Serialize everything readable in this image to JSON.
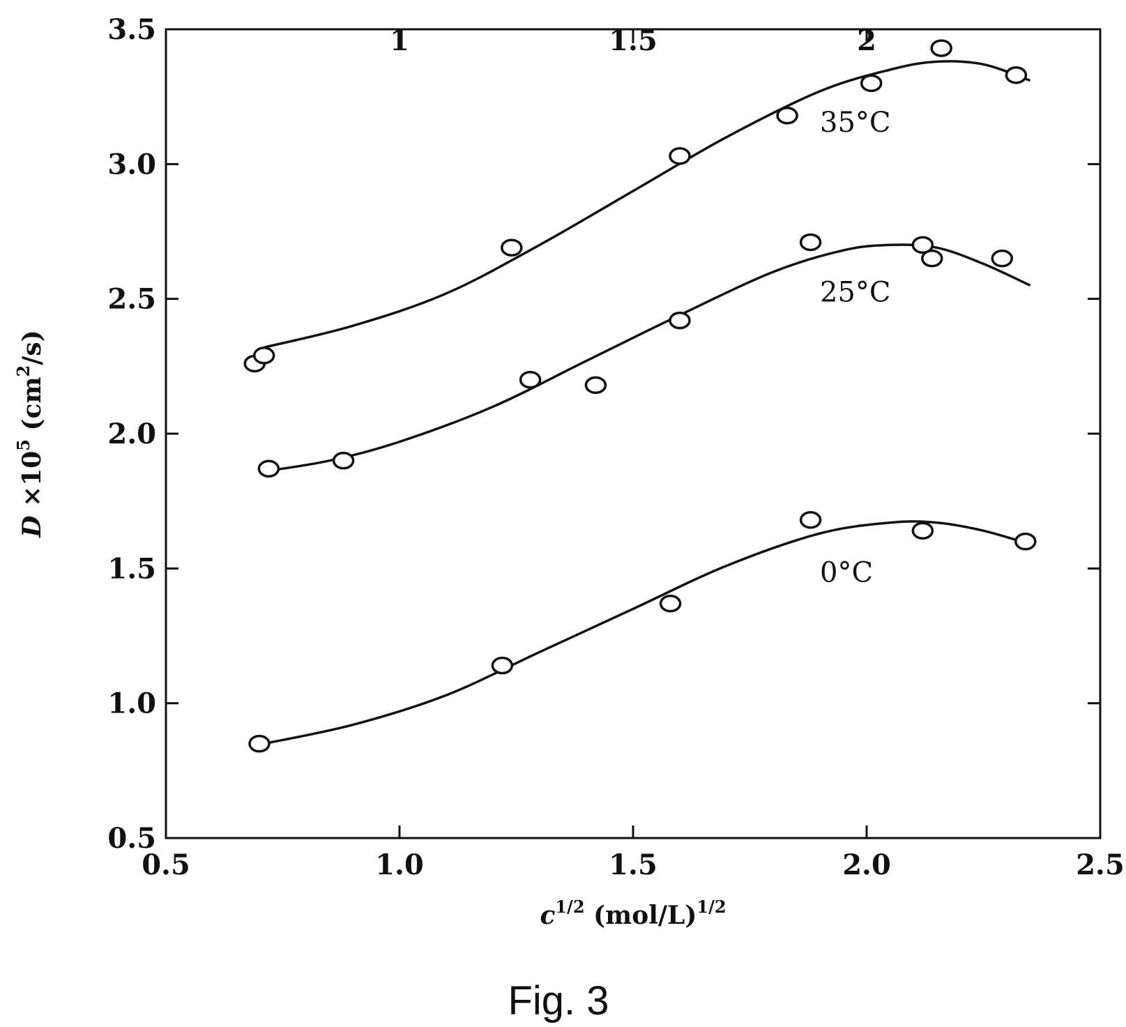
{
  "figure": {
    "caption": "Fig. 3"
  },
  "chart_data": {
    "type": "scatter",
    "xlabel": {
      "base": "c",
      "exp1": "1/2",
      "mid": " (mol/L)",
      "exp2": "1/2"
    },
    "ylabel": {
      "base": "D",
      "mid": " ×10",
      "exp1": "5",
      "mid2": " (cm",
      "exp2": "2",
      "end": "/s)"
    },
    "xlim": [
      0.5,
      2.5
    ],
    "ylim": [
      0.5,
      3.5
    ],
    "xticks": [
      "0.5",
      "1.0",
      "1.5",
      "2.0",
      "2.5"
    ],
    "yticks": [
      "0.5",
      "1.0",
      "1.5",
      "2.0",
      "2.5",
      "3.0",
      "3.5"
    ],
    "top_ticks": [
      "1",
      "1.5",
      "2"
    ],
    "right_ticks": [
      1.0,
      1.5,
      2.0,
      2.5,
      3.0
    ],
    "grid": false,
    "legend": "none",
    "series": [
      {
        "name": "35°C",
        "label_at": [
          1.9,
          3.12
        ],
        "points": [
          [
            0.69,
            2.26
          ],
          [
            0.71,
            2.29
          ],
          [
            1.24,
            2.69
          ],
          [
            1.6,
            3.03
          ],
          [
            1.83,
            3.18
          ],
          [
            2.01,
            3.3
          ],
          [
            2.16,
            3.43
          ],
          [
            2.32,
            3.33
          ]
        ],
        "curve": [
          [
            0.71,
            2.32
          ],
          [
            0.9,
            2.4
          ],
          [
            1.1,
            2.52
          ],
          [
            1.3,
            2.7
          ],
          [
            1.5,
            2.9
          ],
          [
            1.7,
            3.1
          ],
          [
            1.9,
            3.27
          ],
          [
            2.05,
            3.35
          ],
          [
            2.15,
            3.38
          ],
          [
            2.25,
            3.37
          ],
          [
            2.35,
            3.31
          ]
        ]
      },
      {
        "name": "25°C",
        "label_at": [
          1.9,
          2.49
        ],
        "points": [
          [
            0.72,
            1.87
          ],
          [
            0.88,
            1.9
          ],
          [
            1.28,
            2.2
          ],
          [
            1.42,
            2.18
          ],
          [
            1.6,
            2.42
          ],
          [
            1.88,
            2.71
          ],
          [
            2.12,
            2.7
          ],
          [
            2.14,
            2.65
          ],
          [
            2.29,
            2.65
          ]
        ],
        "curve": [
          [
            0.71,
            1.86
          ],
          [
            0.85,
            1.9
          ],
          [
            1.0,
            1.97
          ],
          [
            1.2,
            2.1
          ],
          [
            1.4,
            2.27
          ],
          [
            1.6,
            2.44
          ],
          [
            1.8,
            2.6
          ],
          [
            1.95,
            2.68
          ],
          [
            2.05,
            2.7
          ],
          [
            2.15,
            2.69
          ],
          [
            2.25,
            2.63
          ],
          [
            2.35,
            2.55
          ]
        ]
      },
      {
        "name": "0°C",
        "label_at": [
          1.9,
          1.45
        ],
        "points": [
          [
            0.7,
            0.85
          ],
          [
            1.22,
            1.14
          ],
          [
            1.58,
            1.37
          ],
          [
            1.88,
            1.68
          ],
          [
            2.12,
            1.64
          ],
          [
            2.34,
            1.6
          ]
        ],
        "curve": [
          [
            0.71,
            0.85
          ],
          [
            0.9,
            0.92
          ],
          [
            1.1,
            1.03
          ],
          [
            1.3,
            1.19
          ],
          [
            1.5,
            1.35
          ],
          [
            1.7,
            1.51
          ],
          [
            1.9,
            1.63
          ],
          [
            2.05,
            1.67
          ],
          [
            2.15,
            1.67
          ],
          [
            2.25,
            1.64
          ],
          [
            2.35,
            1.59
          ]
        ]
      }
    ]
  }
}
